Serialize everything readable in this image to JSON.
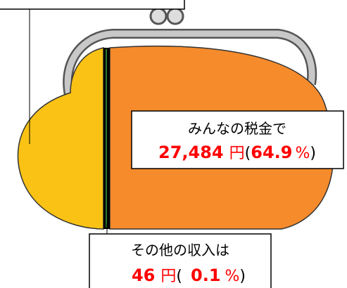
{
  "labels": [
    {
      "text": "みんなの税金で",
      "amount": "27,484",
      "unit": "円",
      "open": "(",
      "share": "64.9",
      "percent": "%",
      "close": ")"
    },
    {
      "text": "その他の収入は",
      "amount": "46",
      "unit": "円",
      "open": "(",
      "share": "0.1",
      "percent": "%",
      "close": ")"
    }
  ]
}
